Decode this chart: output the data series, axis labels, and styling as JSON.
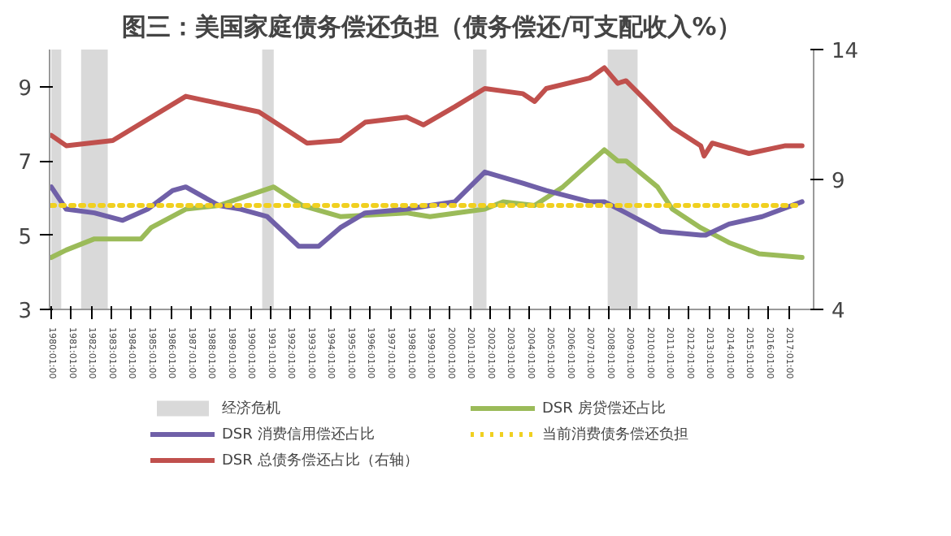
{
  "chart_data": {
    "type": "line",
    "title": "图三：美国家庭债务偿还负担（债务偿还/可支配收入%）",
    "xlim": [
      "1979-12",
      "2018-04"
    ],
    "xticks": [
      {
        "value": "1980-01",
        "label": "1980:01:00"
      },
      {
        "value": "1981-01",
        "label": "1981:01:00"
      },
      {
        "value": "1982-01",
        "label": "1982:01:00"
      },
      {
        "value": "1983-01",
        "label": "1983:01:00"
      },
      {
        "value": "1984-01",
        "label": "1984:01:00"
      },
      {
        "value": "1985-01",
        "label": "1985:01:00"
      },
      {
        "value": "1986-01",
        "label": "1986:01:00"
      },
      {
        "value": "1987-01",
        "label": "1987:01:00"
      },
      {
        "value": "1988-01",
        "label": "1988:01:00"
      },
      {
        "value": "1989-01",
        "label": "1989:01:00"
      },
      {
        "value": "1990-01",
        "label": "1990:01:00"
      },
      {
        "value": "1991-01",
        "label": "1991:01:00"
      },
      {
        "value": "1992-01",
        "label": "1992:01:00"
      },
      {
        "value": "1993-01",
        "label": "1993:01:00"
      },
      {
        "value": "1994-01",
        "label": "1994:01:00"
      },
      {
        "value": "1995-01",
        "label": "1995:01:00"
      },
      {
        "value": "1996-01",
        "label": "1996:01:00"
      },
      {
        "value": "1997-01",
        "label": "1997:01:00"
      },
      {
        "value": "1998-01",
        "label": "1998:01:00"
      },
      {
        "value": "1999-01",
        "label": "1999:01:00"
      },
      {
        "value": "2000-01",
        "label": "2000:01:00"
      },
      {
        "value": "2001-01",
        "label": "2001:01:00"
      },
      {
        "value": "2002-01",
        "label": "2002:01:00"
      },
      {
        "value": "2003-01",
        "label": "2003:01:00"
      },
      {
        "value": "2004-01",
        "label": "2004:01:00"
      },
      {
        "value": "2005-01",
        "label": "2005:01:00"
      },
      {
        "value": "2006-01",
        "label": "2006:01:00"
      },
      {
        "value": "2007-01",
        "label": "2007:01:00"
      },
      {
        "value": "2008-01",
        "label": "2008:01:00"
      },
      {
        "value": "2009-01",
        "label": "2009:01:00"
      },
      {
        "value": "2010-01",
        "label": "2010:01:00"
      },
      {
        "value": "2011-01",
        "label": "2011:01:00"
      },
      {
        "value": "2012-01",
        "label": "2012:01:00"
      },
      {
        "value": "2013-01",
        "label": "2013:01:00"
      },
      {
        "value": "2014-01",
        "label": "2014:01:00"
      },
      {
        "value": "2015-01",
        "label": "2015:01:00"
      },
      {
        "value": "2016-01",
        "label": "2016:01:00"
      },
      {
        "value": "2017-01",
        "label": "2017:01:00"
      }
    ],
    "ylim": [
      3,
      10
    ],
    "yticks": [
      3,
      5,
      7,
      9
    ],
    "y2lim": [
      4,
      14
    ],
    "y2ticks": [
      4,
      9,
      14
    ],
    "grid": false,
    "legend": "bottom",
    "marker": "none",
    "bands": [
      {
        "axis": "x",
        "from": "1980-01",
        "to": "1980-07",
        "label": "经济危机",
        "color": "#bfbfbf"
      },
      {
        "axis": "x",
        "from": "1981-07",
        "to": "1982-11",
        "color": "#bfbfbf"
      },
      {
        "axis": "x",
        "from": "1990-08",
        "to": "1991-03",
        "color": "#bfbfbf"
      },
      {
        "axis": "x",
        "from": "2001-03",
        "to": "2001-11",
        "color": "#bfbfbf"
      },
      {
        "axis": "x",
        "from": "2007-12",
        "to": "2009-06",
        "color": "#bfbfbf"
      }
    ],
    "series": [
      {
        "name": "DSR 房贷偿还占比",
        "color": "#9bbb59",
        "line_style": "solid",
        "x": [
          "1980-01",
          "1980-10",
          "1982-03",
          "1984-07",
          "1985-01",
          "1986-10",
          "1988-06",
          "1989-07",
          "1991-03",
          "1992-08",
          "1994-07",
          "1997-11",
          "1999-01",
          "2001-10",
          "2002-09",
          "2004-04",
          "2005-09",
          "2006-07",
          "2007-10",
          "2008-06",
          "2008-11",
          "2010-06",
          "2011-03",
          "2012-08",
          "2014-01",
          "2015-07",
          "2017-09"
        ],
        "values": [
          4.4,
          4.6,
          4.9,
          4.9,
          5.2,
          5.7,
          5.8,
          6.0,
          6.3,
          5.8,
          5.5,
          5.6,
          5.5,
          5.7,
          5.9,
          5.8,
          6.3,
          6.7,
          7.3,
          7.0,
          7.0,
          6.3,
          5.7,
          5.2,
          4.8,
          4.5,
          4.4
        ]
      },
      {
        "name": "DSR 消费信用偿还占比",
        "color": "#7060a8",
        "line_style": "solid",
        "x": [
          "1980-01",
          "1980-10",
          "1982-03",
          "1983-08",
          "1984-11",
          "1986-02",
          "1986-10",
          "1988-06",
          "1989-07",
          "1990-11",
          "1992-06",
          "1993-06",
          "1994-07",
          "1995-10",
          "1997-11",
          "1999-01",
          "2000-04",
          "2001-10",
          "2003-09",
          "2004-11",
          "2007-01",
          "2007-10",
          "2008-11",
          "2010-08",
          "2012-08",
          "2012-11",
          "2014-01",
          "2015-09",
          "2017-09"
        ],
        "values": [
          6.3,
          5.7,
          5.6,
          5.4,
          5.7,
          6.2,
          6.3,
          5.8,
          5.7,
          5.5,
          4.7,
          4.7,
          5.2,
          5.6,
          5.7,
          5.8,
          5.9,
          6.7,
          6.4,
          6.2,
          5.9,
          5.9,
          5.6,
          5.1,
          5.0,
          5.0,
          5.3,
          5.5,
          5.9
        ]
      },
      {
        "name": "当前消费债务偿还负担",
        "color": "#f0d020",
        "line_style": "dotted",
        "x": [
          "1980-01",
          "2017-09"
        ],
        "values": [
          5.8,
          5.8
        ]
      },
      {
        "name": "DSR 总债务偿还占比（右轴）",
        "color": "#c0504d",
        "line_style": "solid",
        "axis": "y2",
        "x": [
          "1980-01",
          "1980-10",
          "1983-02",
          "1986-10",
          "1990-06",
          "1992-11",
          "1994-07",
          "1995-10",
          "1997-11",
          "1998-09",
          "2000-04",
          "2001-10",
          "2003-09",
          "2004-04",
          "2004-11",
          "2007-01",
          "2007-10",
          "2008-06",
          "2008-11",
          "2009-10",
          "2011-03",
          "2012-08",
          "2012-10",
          "2013-03",
          "2015-01",
          "2016-11",
          "2017-09"
        ],
        "values": [
          10.7,
          10.3,
          10.5,
          12.2,
          11.6,
          10.4,
          10.5,
          11.2,
          11.4,
          11.1,
          11.8,
          12.5,
          12.3,
          12.0,
          12.5,
          12.9,
          13.3,
          12.7,
          12.8,
          12.1,
          11.0,
          10.3,
          9.9,
          10.4,
          10.0,
          10.3,
          10.3
        ]
      }
    ]
  }
}
